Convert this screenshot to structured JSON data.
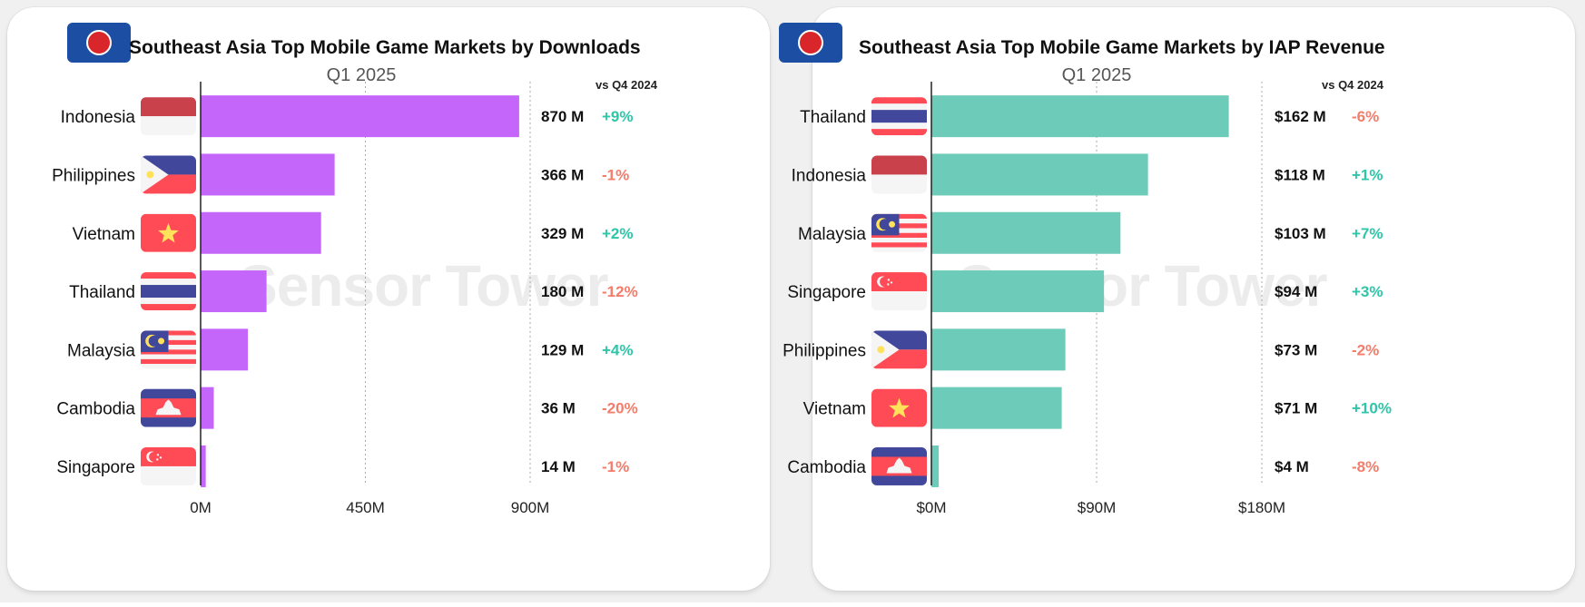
{
  "chart_data": [
    {
      "type": "bar",
      "orientation": "horizontal",
      "title": "Southeast Asia Top Mobile Game Markets by Downloads",
      "subtitle": "Q1 2025",
      "change_header": "vs Q4 2024",
      "categories": [
        "Indonesia",
        "Philippines",
        "Vietnam",
        "Thailand",
        "Malaysia",
        "Cambodia",
        "Singapore"
      ],
      "values": [
        870,
        366,
        329,
        180,
        129,
        36,
        14
      ],
      "value_labels": [
        "870 M",
        "366 M",
        "329 M",
        "180 M",
        "129 M",
        "36 M",
        "14 M"
      ],
      "changes": [
        "+9%",
        "-1%",
        "+2%",
        "-12%",
        "+4%",
        "-20%",
        "-1%"
      ],
      "xlim": [
        0,
        900
      ],
      "xticks": [
        0,
        450,
        900
      ],
      "xtick_labels": [
        "0M",
        "450M",
        "900M"
      ],
      "bar_color": "#c566fb",
      "grid": "vertical dotted",
      "watermark": "Sensor Tower"
    },
    {
      "type": "bar",
      "orientation": "horizontal",
      "title": "Southeast Asia Top Mobile Game Markets by IAP Revenue",
      "subtitle": "Q1 2025",
      "change_header": "vs Q4 2024",
      "categories": [
        "Thailand",
        "Indonesia",
        "Malaysia",
        "Singapore",
        "Philippines",
        "Vietnam",
        "Cambodia"
      ],
      "values": [
        162,
        118,
        103,
        94,
        73,
        71,
        4
      ],
      "value_labels": [
        "$162 M",
        "$118 M",
        "$103 M",
        "$94 M",
        "$73 M",
        "$71 M",
        "$4 M"
      ],
      "changes": [
        "-6%",
        "+1%",
        "+7%",
        "+3%",
        "-2%",
        "+10%",
        "-8%"
      ],
      "xlim": [
        0,
        180
      ],
      "xticks": [
        0,
        90,
        180
      ],
      "xtick_labels": [
        "$0M",
        "$90M",
        "$180M"
      ],
      "bar_color": "#6ccbb9",
      "grid": "vertical dotted",
      "watermark": "Sensor Tower"
    }
  ],
  "colors": {
    "positive": "#2dc6a8",
    "negative": "#f47c6a",
    "axis": "#222222",
    "grid": "#aaaaaa"
  },
  "flag_icons": {
    "Indonesia": "indonesia-flag-icon",
    "Philippines": "philippines-flag-icon",
    "Vietnam": "vietnam-flag-icon",
    "Thailand": "thailand-flag-icon",
    "Malaysia": "malaysia-flag-icon",
    "Cambodia": "cambodia-flag-icon",
    "Singapore": "singapore-flag-icon"
  }
}
